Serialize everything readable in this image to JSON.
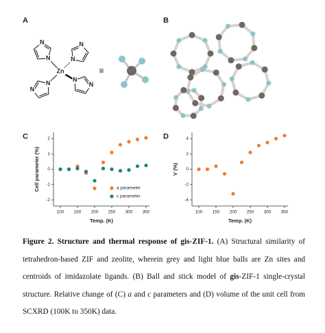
{
  "panel_labels": [
    "A",
    "B",
    "C",
    "D"
  ],
  "molecule": {
    "center": "Zn",
    "atoms": [
      "N",
      "N",
      "N",
      "N",
      "N",
      "N",
      "N",
      "N"
    ],
    "equiv": "≡"
  },
  "chart_data": [
    {
      "type": "scatter",
      "xlabel": "Temp. (K)",
      "ylabel": "Cell parameter (%)",
      "x": [
        100,
        125,
        150,
        175,
        200,
        225,
        250,
        275,
        300,
        325,
        350
      ],
      "series": [
        {
          "name": "a parameter",
          "color": "#ed7d31",
          "values": [
            0,
            0,
            0.2,
            -0.25,
            -1.25,
            0.45,
            1.1,
            1.6,
            1.8,
            1.95,
            2.05
          ]
        },
        {
          "name": "c parameter",
          "color": "#1f7f80",
          "values": [
            0,
            0,
            0.05,
            -0.15,
            -0.75,
            0.05,
            0,
            -0.1,
            -0.05,
            0.2,
            0.25
          ]
        }
      ],
      "xlim": [
        80,
        360
      ],
      "ylim": [
        -2.4,
        2.4
      ],
      "xticks": [
        100,
        150,
        200,
        250,
        300,
        350
      ],
      "yticks": [
        -2,
        -1,
        0,
        1,
        2
      ],
      "legend": "lower right"
    },
    {
      "type": "scatter",
      "xlabel": "Temp. (K)",
      "ylabel": "V (%)",
      "x": [
        100,
        125,
        150,
        175,
        200,
        225,
        250,
        275,
        300,
        325,
        350
      ],
      "values": [
        0,
        0,
        0.4,
        -0.6,
        -3.2,
        0.9,
        2.2,
        3.1,
        3.5,
        4.0,
        4.4
      ],
      "color": "#ed7d31",
      "xlim": [
        80,
        360
      ],
      "ylim": [
        -4.8,
        4.8
      ],
      "xticks": [
        100,
        150,
        200,
        250,
        300,
        350
      ],
      "yticks": [
        -4,
        -2,
        0,
        2,
        4
      ]
    }
  ],
  "caption": {
    "runs": [
      "Figure 2. Structure and thermal response of gis-ZIF-1.",
      "(A) Structural similarity of tetrahedron-based ZIF and zeolite, wherein grey and light blue balls are Zn sites and centroids of imidazolate ligands. (B) Ball and stick model of",
      "gis",
      "-ZIF-1 single-crystal structure. Relative change of (C)",
      "a",
      "and",
      "c",
      "parameters and (D) volume of the unit cell from SCXRD (100K to 350K) data."
    ]
  }
}
